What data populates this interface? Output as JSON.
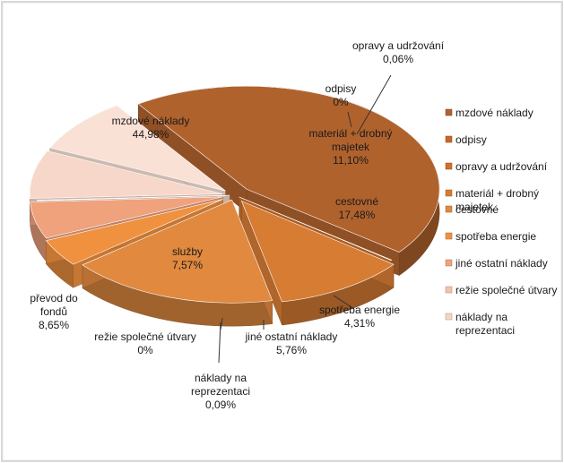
{
  "chart_data": {
    "type": "pie",
    "subtype": "3d-exploded",
    "legend_position": "right",
    "slices": [
      {
        "name": "mzdové náklady",
        "value": 44.98,
        "value_label": "44,98%",
        "color": "#b0622d",
        "label_lines": [
          "mzdové náklady",
          "44,98%"
        ]
      },
      {
        "name": "odpisy",
        "value": 0,
        "value_label": "0%",
        "color": "#c8672a",
        "label_lines": [
          "odpisy",
          "0%"
        ]
      },
      {
        "name": "opravy a udržování",
        "value": 0.06,
        "value_label": "0,06%",
        "color": "#d0702a",
        "label_lines": [
          "opravy a udržování",
          "0,06%"
        ]
      },
      {
        "name": "materiál + drobný majetek",
        "value": 11.1,
        "value_label": "11,10%",
        "color": "#d77c33",
        "label_lines": [
          "materiál + drobný",
          "majetek",
          "11,10%"
        ]
      },
      {
        "name": "cestovné",
        "value": 17.48,
        "value_label": "17,48%",
        "color": "#e0893f",
        "label_lines": [
          "cestovné",
          "17,48%"
        ]
      },
      {
        "name": "spotřeba energie",
        "value": 4.31,
        "value_label": "4,31%",
        "color": "#f0913f",
        "label_lines": [
          "spotřeba energie",
          "4,31%"
        ]
      },
      {
        "name": "jiné ostatní náklady",
        "value": 5.76,
        "value_label": "5,76%",
        "color": "#f0a27c",
        "label_lines": [
          "jiné ostatní náklady",
          "5,76%"
        ]
      },
      {
        "name": "režie společné útvary",
        "value": 0,
        "value_label": "0%",
        "color": "#f4c2a8",
        "label_lines": [
          "režie společné útvary",
          "0%"
        ]
      },
      {
        "name": "náklady na reprezentaci",
        "value": 0.09,
        "value_label": "0,09%",
        "color": "#f7d5c3",
        "label_lines": [
          "náklady na",
          "reprezentaci",
          "0,09%"
        ]
      },
      {
        "name": "služby",
        "value": 7.57,
        "value_label": "7,57%",
        "color": "#f7d7c9",
        "label_lines": [
          "služby",
          "7,57%"
        ]
      },
      {
        "name": "převod do fondů",
        "value": 8.65,
        "value_label": "8,65%",
        "color": "#f9e1d6",
        "label_lines": [
          "převod do",
          "fondů",
          "8,65%"
        ]
      }
    ],
    "legend": [
      {
        "label_lines": [
          "mzdové náklady"
        ],
        "color": "#b0622d"
      },
      {
        "label_lines": [
          "odpisy"
        ],
        "color": "#c8672a"
      },
      {
        "label_lines": [
          "opravy a udržování"
        ],
        "color": "#d0702a"
      },
      {
        "label_lines": [
          "materiál + drobný",
          "majetek"
        ],
        "color": "#d77c33"
      },
      {
        "label_lines": [
          "cestovné"
        ],
        "color": "#e0893f"
      },
      {
        "label_lines": [
          "spotřeba energie"
        ],
        "color": "#f0913f"
      },
      {
        "label_lines": [
          "jiné ostatní náklady"
        ],
        "color": "#f0a27c"
      },
      {
        "label_lines": [
          "režie společné útvary"
        ],
        "color": "#f4c2a8"
      },
      {
        "label_lines": [
          "náklady na",
          "reprezentaci"
        ],
        "color": "#f7d5c3"
      }
    ]
  }
}
